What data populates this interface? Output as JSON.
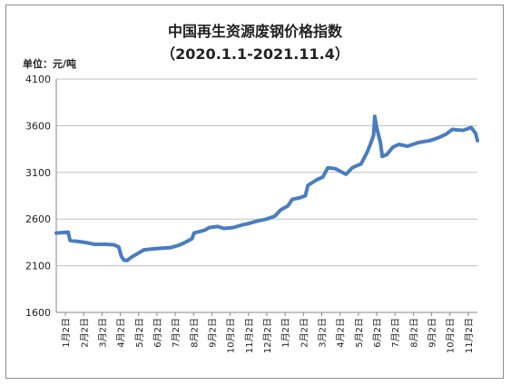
{
  "chart_data": {
    "type": "line",
    "title": "中国再生资源废钢价格指数",
    "subtitle": "（2020.1.1-2021.11.4）",
    "unit_label": "单位：元/吨",
    "xlabel": "",
    "ylabel": "",
    "ylim": [
      1600,
      4100
    ],
    "yticks": [
      1600,
      2100,
      2600,
      3100,
      3600,
      4100
    ],
    "x_tick_labels": [
      "1月2日",
      "2月2日",
      "3月2日",
      "4月2日",
      "5月2日",
      "6月2日",
      "7月2日",
      "8月2日",
      "9月2日",
      "10月2日",
      "11月2日",
      "12月2日",
      "1月2日",
      "2月2日",
      "3月2日",
      "4月2日",
      "5月2日",
      "6月2日",
      "7月2日",
      "8月2日",
      "9月2日",
      "10月2日",
      "11月2日"
    ],
    "x_range": [
      "2020-01-01",
      "2021-11-04"
    ],
    "grid": "horizontal",
    "legend": "none",
    "colors": {
      "line": "#4a7dbe",
      "grid": "#bfbfbf",
      "axis": "#888888"
    },
    "series": [
      {
        "values": [
          [
            "2020-01-01",
            2450
          ],
          [
            "2020-01-20",
            2460
          ],
          [
            "2020-01-23",
            2370
          ],
          [
            "2020-02-05",
            2360
          ],
          [
            "2020-02-20",
            2345
          ],
          [
            "2020-03-02",
            2330
          ],
          [
            "2020-03-20",
            2330
          ],
          [
            "2020-04-02",
            2325
          ],
          [
            "2020-04-10",
            2300
          ],
          [
            "2020-04-14",
            2200
          ],
          [
            "2020-04-18",
            2160
          ],
          [
            "2020-04-23",
            2155
          ],
          [
            "2020-05-02",
            2200
          ],
          [
            "2020-05-10",
            2230
          ],
          [
            "2020-05-20",
            2270
          ],
          [
            "2020-06-02",
            2280
          ],
          [
            "2020-06-20",
            2290
          ],
          [
            "2020-07-02",
            2295
          ],
          [
            "2020-07-15",
            2320
          ],
          [
            "2020-07-25",
            2350
          ],
          [
            "2020-08-05",
            2390
          ],
          [
            "2020-08-08",
            2450
          ],
          [
            "2020-08-25",
            2480
          ],
          [
            "2020-09-02",
            2510
          ],
          [
            "2020-09-15",
            2520
          ],
          [
            "2020-09-25",
            2500
          ],
          [
            "2020-10-10",
            2510
          ],
          [
            "2020-10-25",
            2540
          ],
          [
            "2020-11-02",
            2550
          ],
          [
            "2020-11-15",
            2575
          ],
          [
            "2020-12-02",
            2600
          ],
          [
            "2020-12-15",
            2630
          ],
          [
            "2020-12-25",
            2700
          ],
          [
            "2021-01-05",
            2740
          ],
          [
            "2021-01-12",
            2810
          ],
          [
            "2021-01-25",
            2830
          ],
          [
            "2021-02-02",
            2850
          ],
          [
            "2021-02-06",
            2960
          ],
          [
            "2021-02-20",
            3020
          ],
          [
            "2021-03-02",
            3050
          ],
          [
            "2021-03-10",
            3150
          ],
          [
            "2021-03-22",
            3140
          ],
          [
            "2021-04-02",
            3100
          ],
          [
            "2021-04-08",
            3080
          ],
          [
            "2021-04-18",
            3150
          ],
          [
            "2021-04-28",
            3180
          ],
          [
            "2021-05-02",
            3190
          ],
          [
            "2021-05-12",
            3320
          ],
          [
            "2021-05-18",
            3420
          ],
          [
            "2021-05-22",
            3500
          ],
          [
            "2021-05-24",
            3700
          ],
          [
            "2021-05-27",
            3580
          ],
          [
            "2021-06-02",
            3420
          ],
          [
            "2021-06-05",
            3270
          ],
          [
            "2021-06-12",
            3290
          ],
          [
            "2021-06-22",
            3370
          ],
          [
            "2021-06-28",
            3390
          ],
          [
            "2021-07-02",
            3400
          ],
          [
            "2021-07-15",
            3380
          ],
          [
            "2021-08-02",
            3420
          ],
          [
            "2021-08-20",
            3440
          ],
          [
            "2021-09-02",
            3470
          ],
          [
            "2021-09-15",
            3510
          ],
          [
            "2021-09-25",
            3560
          ],
          [
            "2021-10-02",
            3555
          ],
          [
            "2021-10-12",
            3550
          ],
          [
            "2021-10-25",
            3580
          ],
          [
            "2021-11-01",
            3520
          ],
          [
            "2021-11-04",
            3440
          ]
        ]
      }
    ]
  }
}
